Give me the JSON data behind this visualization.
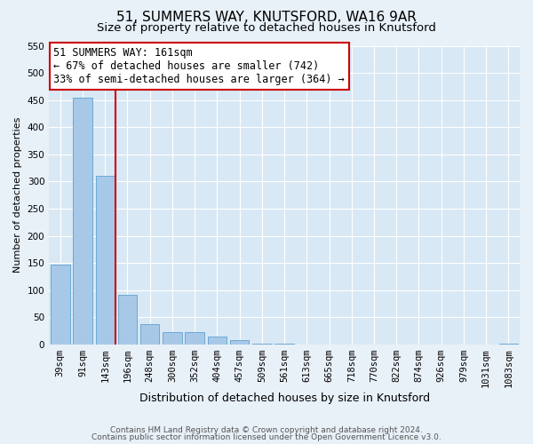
{
  "title": "51, SUMMERS WAY, KNUTSFORD, WA16 9AR",
  "subtitle": "Size of property relative to detached houses in Knutsford",
  "xlabel": "Distribution of detached houses by size in Knutsford",
  "ylabel": "Number of detached properties",
  "categories": [
    "39sqm",
    "91sqm",
    "143sqm",
    "196sqm",
    "248sqm",
    "300sqm",
    "352sqm",
    "404sqm",
    "457sqm",
    "509sqm",
    "561sqm",
    "613sqm",
    "665sqm",
    "718sqm",
    "770sqm",
    "822sqm",
    "874sqm",
    "926sqm",
    "979sqm",
    "1031sqm",
    "1083sqm"
  ],
  "values": [
    147,
    455,
    310,
    92,
    37,
    22,
    22,
    14,
    8,
    2,
    2,
    0,
    0,
    0,
    0,
    0,
    0,
    0,
    0,
    0,
    2
  ],
  "bar_color": "#a8c8e8",
  "bar_edge_color": "#6aaad4",
  "vline_color": "#cc0000",
  "annotation_title": "51 SUMMERS WAY: 161sqm",
  "annotation_line1": "← 67% of detached houses are smaller (742)",
  "annotation_line2": "33% of semi-detached houses are larger (364) →",
  "annotation_box_color": "#ffffff",
  "annotation_border_color": "#cc0000",
  "ylim": [
    0,
    550
  ],
  "yticks": [
    0,
    50,
    100,
    150,
    200,
    250,
    300,
    350,
    400,
    450,
    500,
    550
  ],
  "footer1": "Contains HM Land Registry data © Crown copyright and database right 2024.",
  "footer2": "Contains public sector information licensed under the Open Government Licence v3.0.",
  "bg_color": "#e8f0f8",
  "plot_bg_color": "#d8e8f4",
  "grid_color": "#ffffff",
  "title_fontsize": 11,
  "subtitle_fontsize": 9.5,
  "xlabel_fontsize": 9,
  "ylabel_fontsize": 8,
  "tick_fontsize": 7.5,
  "annotation_fontsize": 8.5,
  "footer_fontsize": 6.5
}
